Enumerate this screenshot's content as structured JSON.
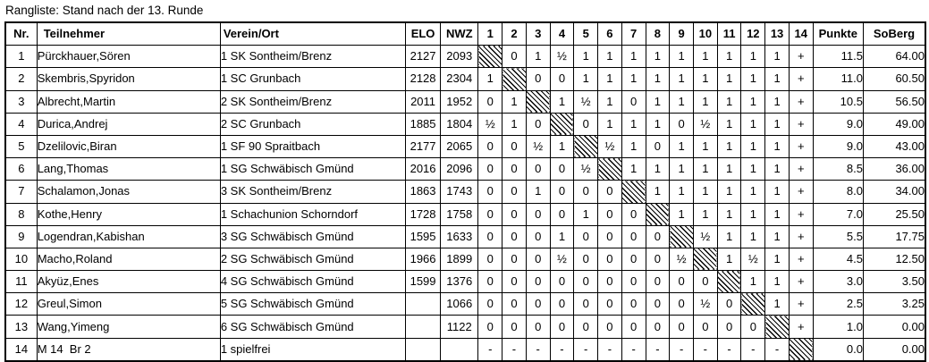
{
  "title": "Rangliste: Stand nach der 13. Runde",
  "colors": {
    "background": "#ffffff",
    "text": "#000000",
    "border": "#000000",
    "diagonal_hatch": "#000000"
  },
  "table": {
    "headers": [
      "Nr.",
      "Teilnehmer",
      "Verein/Ort",
      "ELO",
      "NWZ",
      "1",
      "2",
      "3",
      "4",
      "5",
      "6",
      "7",
      "8",
      "9",
      "10",
      "11",
      "12",
      "13",
      "14",
      "Punkte",
      "SoBerg"
    ],
    "hatch_marker": "X",
    "rows": [
      {
        "nr": "1",
        "name": "Pürckhauer,Sören",
        "club": "1 SK Sontheim/Brenz",
        "elo": "2127",
        "nwz": "2093",
        "rounds": [
          "X",
          "0",
          "1",
          "½",
          "1",
          "1",
          "1",
          "1",
          "1",
          "1",
          "1",
          "1",
          "1",
          "+"
        ],
        "punkte": "11.5",
        "soberg": "64.00"
      },
      {
        "nr": "2",
        "name": "Skembris,Spyridon",
        "club": "1 SC Grunbach",
        "elo": "2128",
        "nwz": "2304",
        "rounds": [
          "1",
          "X",
          "0",
          "0",
          "1",
          "1",
          "1",
          "1",
          "1",
          "1",
          "1",
          "1",
          "1",
          "+"
        ],
        "punkte": "11.0",
        "soberg": "60.50"
      },
      {
        "nr": "3",
        "name": "Albrecht,Martin",
        "club": "2 SK Sontheim/Brenz",
        "elo": "2011",
        "nwz": "1952",
        "rounds": [
          "0",
          "1",
          "X",
          "1",
          "½",
          "1",
          "0",
          "1",
          "1",
          "1",
          "1",
          "1",
          "1",
          "+"
        ],
        "punkte": "10.5",
        "soberg": "56.50"
      },
      {
        "nr": "4",
        "name": "Durica,Andrej",
        "club": "2 SC Grunbach",
        "elo": "1885",
        "nwz": "1804",
        "rounds": [
          "½",
          "1",
          "0",
          "X",
          "0",
          "1",
          "1",
          "1",
          "0",
          "½",
          "1",
          "1",
          "1",
          "+"
        ],
        "punkte": "9.0",
        "soberg": "49.00"
      },
      {
        "nr": "5",
        "name": "Dzelilovic,Biran",
        "club": "1 SF 90 Spraitbach",
        "elo": "2177",
        "nwz": "2065",
        "rounds": [
          "0",
          "0",
          "½",
          "1",
          "X",
          "½",
          "1",
          "0",
          "1",
          "1",
          "1",
          "1",
          "1",
          "+"
        ],
        "punkte": "9.0",
        "soberg": "43.00"
      },
      {
        "nr": "6",
        "name": "Lang,Thomas",
        "club": "1 SG Schwäbisch Gmünd",
        "elo": "2016",
        "nwz": "2096",
        "rounds": [
          "0",
          "0",
          "0",
          "0",
          "½",
          "X",
          "1",
          "1",
          "1",
          "1",
          "1",
          "1",
          "1",
          "+"
        ],
        "punkte": "8.5",
        "soberg": "36.00"
      },
      {
        "nr": "7",
        "name": "Schalamon,Jonas",
        "club": "3 SK Sontheim/Brenz",
        "elo": "1863",
        "nwz": "1743",
        "rounds": [
          "0",
          "0",
          "1",
          "0",
          "0",
          "0",
          "X",
          "1",
          "1",
          "1",
          "1",
          "1",
          "1",
          "+"
        ],
        "punkte": "8.0",
        "soberg": "34.00"
      },
      {
        "nr": "8",
        "name": "Kothe,Henry",
        "club": "1 Schachunion Schorndorf",
        "elo": "1728",
        "nwz": "1758",
        "rounds": [
          "0",
          "0",
          "0",
          "0",
          "1",
          "0",
          "0",
          "X",
          "1",
          "1",
          "1",
          "1",
          "1",
          "+"
        ],
        "punkte": "7.0",
        "soberg": "25.50"
      },
      {
        "nr": "9",
        "name": "Logendran,Kabishan",
        "club": "3 SG Schwäbisch Gmünd",
        "elo": "1595",
        "nwz": "1633",
        "rounds": [
          "0",
          "0",
          "0",
          "1",
          "0",
          "0",
          "0",
          "0",
          "X",
          "½",
          "1",
          "1",
          "1",
          "+"
        ],
        "punkte": "5.5",
        "soberg": "17.75"
      },
      {
        "nr": "10",
        "name": "Macho,Roland",
        "club": "2 SG Schwäbisch Gmünd",
        "elo": "1966",
        "nwz": "1899",
        "rounds": [
          "0",
          "0",
          "0",
          "½",
          "0",
          "0",
          "0",
          "0",
          "½",
          "X",
          "1",
          "½",
          "1",
          "+"
        ],
        "punkte": "4.5",
        "soberg": "12.50"
      },
      {
        "nr": "11",
        "name": "Akyüz,Enes",
        "club": "4 SG Schwäbisch Gmünd",
        "elo": "1599",
        "nwz": "1376",
        "rounds": [
          "0",
          "0",
          "0",
          "0",
          "0",
          "0",
          "0",
          "0",
          "0",
          "0",
          "X",
          "1",
          "1",
          "+"
        ],
        "punkte": "3.0",
        "soberg": "3.50"
      },
      {
        "nr": "12",
        "name": "Greul,Simon",
        "club": "5 SG Schwäbisch Gmünd",
        "elo": "",
        "nwz": "1066",
        "rounds": [
          "0",
          "0",
          "0",
          "0",
          "0",
          "0",
          "0",
          "0",
          "0",
          "½",
          "0",
          "X",
          "1",
          "+"
        ],
        "punkte": "2.5",
        "soberg": "3.25"
      },
      {
        "nr": "13",
        "name": "Wang,Yimeng",
        "club": "6 SG Schwäbisch Gmünd",
        "elo": "",
        "nwz": "1122",
        "rounds": [
          "0",
          "0",
          "0",
          "0",
          "0",
          "0",
          "0",
          "0",
          "0",
          "0",
          "0",
          "0",
          "X",
          "+"
        ],
        "punkte": "1.0",
        "soberg": "0.00"
      },
      {
        "nr": "14",
        "name": "M 14  Br 2",
        "club": "1 spielfrei",
        "elo": "",
        "nwz": "",
        "rounds": [
          "-",
          "-",
          "-",
          "-",
          "-",
          "-",
          "-",
          "-",
          "-",
          "-",
          "-",
          "-",
          "-",
          "X"
        ],
        "punkte": "0.0",
        "soberg": "0.00"
      }
    ]
  }
}
